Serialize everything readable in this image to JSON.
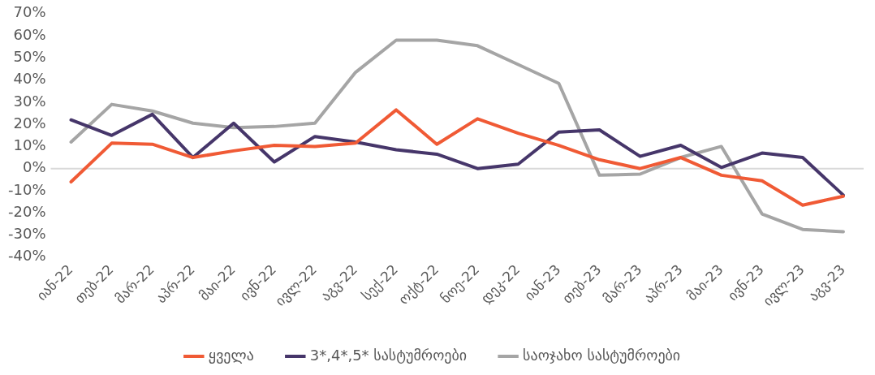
{
  "chart_data": {
    "type": "line",
    "categories": [
      "იან-22",
      "თებ-22",
      "მარ-22",
      "აპრ-22",
      "მაი-22",
      "ივნ-22",
      "ივლ-22",
      "აგვ-22",
      "სექ-22",
      "ოქტ-22",
      "ნოე-22",
      "დეკ-22",
      "იან-23",
      "თებ-23",
      "მარ-23",
      "აპრ-23",
      "მაი-23",
      "ივნ-23",
      "ივლ-23",
      "აგვ-23"
    ],
    "series": [
      {
        "name": "ყველა",
        "color": "#f05a35",
        "values": [
          -6,
          11.5,
          11,
          5,
          8,
          10.5,
          10,
          11.5,
          26.5,
          11,
          22.5,
          16,
          10.5,
          4,
          0,
          5,
          -3,
          -5.5,
          -16.5,
          -12.5
        ]
      },
      {
        "name": "3*,4*,5* სასტუმროები",
        "color": "#46366a",
        "values": [
          22,
          15,
          24.5,
          5,
          20.5,
          3,
          14.5,
          12,
          8.5,
          6.5,
          0,
          2,
          16.5,
          17.5,
          5.5,
          10.5,
          0.5,
          7,
          5,
          -12
        ]
      },
      {
        "name": "საოჯახო სასტუმროები",
        "color": "#a5a5a5",
        "values": [
          12,
          29,
          26,
          20.5,
          18.5,
          19,
          20.5,
          43.5,
          58,
          58,
          55.5,
          47,
          38.5,
          -3,
          -2.5,
          5,
          10,
          -20.5,
          -27.5,
          -28.5
        ]
      }
    ],
    "ylim": [
      -40,
      70
    ],
    "yticks": [
      {
        "value": -40,
        "label": "-40%"
      },
      {
        "value": -30,
        "label": "-30%"
      },
      {
        "value": -20,
        "label": "-20%"
      },
      {
        "value": -10,
        "label": "-10%"
      },
      {
        "value": 0,
        "label": "0%"
      },
      {
        "value": 10,
        "label": "10%"
      },
      {
        "value": 20,
        "label": "20%"
      },
      {
        "value": 30,
        "label": "30%"
      },
      {
        "value": 40,
        "label": "40%"
      },
      {
        "value": 50,
        "label": "50%"
      },
      {
        "value": 60,
        "label": "60%"
      },
      {
        "value": 70,
        "label": "70%"
      }
    ],
    "ref_lines": [
      {
        "axis": "y",
        "value": 0,
        "color": "#d9d9d9",
        "line_style": "solid"
      }
    ],
    "grid": false,
    "legend": "bottom",
    "marker": "none",
    "line_style": "solid"
  }
}
